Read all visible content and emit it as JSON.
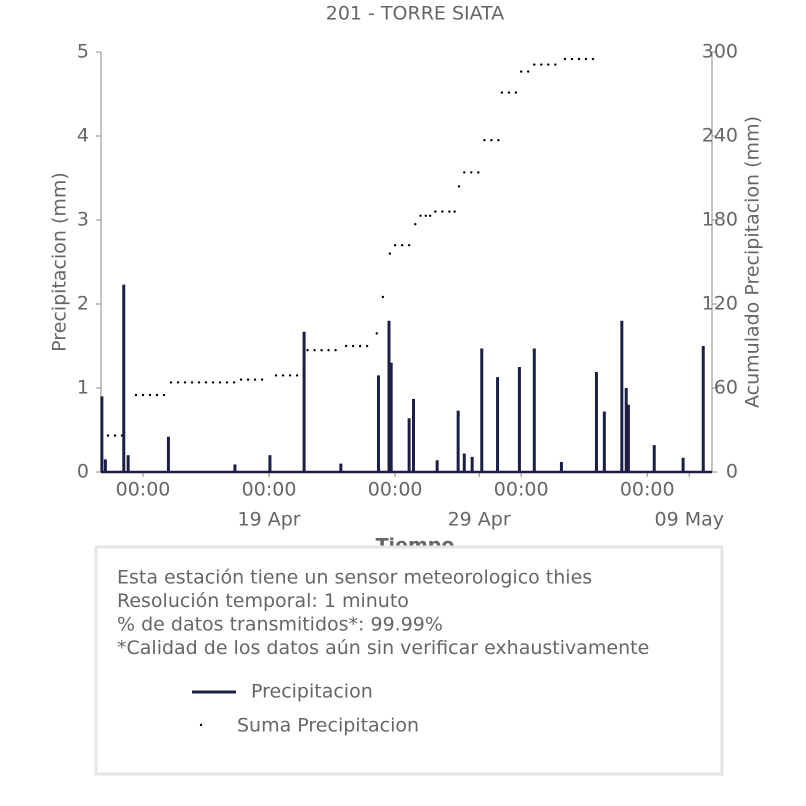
{
  "chart_data": {
    "type": "line",
    "title": "201 - TORRE SIATA",
    "xlabel": "Tiempo",
    "ylabel": "Precipitacion (mm)",
    "y2label": "Acumulado Precipitacion (mm)",
    "xlim": [
      "11 Apr 00:00",
      "10 May 02:00"
    ],
    "xticks": [
      {
        "value": "13 Apr 00:00",
        "label": "00:00"
      },
      {
        "value": "19 Apr 00:00",
        "label": "00:00"
      },
      {
        "value": "25 Apr 00:00",
        "label": "00:00"
      },
      {
        "value": "01 May 00:00",
        "label": "00:00"
      },
      {
        "value": "07 May 00:00",
        "label": "00:00"
      }
    ],
    "xticks_secondary": [
      {
        "value": "19 Apr 00:00",
        "label": "19 Apr"
      },
      {
        "value": "29 Apr 00:00",
        "label": "29 Apr"
      },
      {
        "value": "09 May 00:00",
        "label": "09 May"
      }
    ],
    "ylim": [
      0,
      5
    ],
    "yticks": [
      0,
      1,
      2,
      3,
      4,
      5
    ],
    "y2lim": [
      0,
      300
    ],
    "y2ticks": [
      0,
      60,
      120,
      180,
      240,
      300
    ],
    "annotations": [
      "Esta estación tiene un sensor meteorologico thies",
      "Resolución temporal: 1 minuto",
      "% de datos transmitidos*: 99.99%",
      "*Calidad de los datos aún sin verificar exhaustivamente"
    ],
    "series": [
      {
        "name": "Precipitacion",
        "color": "#1c1f45",
        "x": [
          "11 Apr 01:00",
          "11 Apr 05:00",
          "12 Apr 02:00",
          "12 Apr 07:00",
          "14 Apr 05:00",
          "17 Apr 09:00",
          "19 Apr 01:00",
          "20 Apr 16:00",
          "22 Apr 10:00",
          "24 Apr 05:00",
          "24 Apr 17:00",
          "24 Apr 19:30",
          "25 Apr 16:00",
          "25 Apr 21:00",
          "27 Apr 00:00",
          "28 Apr 00:00",
          "28 Apr 07:00",
          "28 Apr 16:00",
          "29 Apr 03:00",
          "29 Apr 21:00",
          "30 Apr 22:00",
          "01 May 15:00",
          "02 May 22:00",
          "04 May 14:00",
          "04 May 23:00",
          "05 May 19:00",
          "06 May 00:00",
          "06 May 02:30",
          "07 May 08:00",
          "08 May 17:00",
          "09 May 16:00"
        ],
        "values": [
          0.9,
          0.15,
          2.23,
          0.2,
          0.42,
          0.09,
          0.2,
          1.67,
          0.1,
          1.15,
          1.8,
          1.3,
          0.64,
          0.87,
          0.14,
          0.73,
          0.22,
          0.18,
          1.47,
          1.13,
          1.25,
          1.47,
          0.12,
          1.19,
          0.72,
          1.8,
          1.0,
          0.8,
          0.32,
          0.17,
          1.5
        ]
      },
      {
        "name": "Suma Precipitacion",
        "color": "#000000",
        "axis": "y2",
        "x": [
          "11 Apr 08:00",
          "11 Apr 16:00",
          "12 Apr 00:00",
          "12 Apr 16:00",
          "13 Apr 00:00",
          "13 Apr 08:00",
          "13 Apr 16:00",
          "14 Apr 00:00",
          "14 Apr 08:00",
          "14 Apr 16:00",
          "15 Apr 00:00",
          "15 Apr 08:00",
          "15 Apr 16:00",
          "16 Apr 00:00",
          "16 Apr 08:00",
          "16 Apr 16:00",
          "17 Apr 00:00",
          "17 Apr 08:00",
          "17 Apr 16:00",
          "18 Apr 00:00",
          "18 Apr 08:00",
          "18 Apr 16:00",
          "19 Apr 08:00",
          "19 Apr 16:00",
          "20 Apr 00:00",
          "20 Apr 08:00",
          "20 Apr 20:00",
          "21 Apr 04:00",
          "21 Apr 12:00",
          "21 Apr 20:00",
          "22 Apr 04:00",
          "22 Apr 16:00",
          "23 Apr 00:00",
          "23 Apr 08:00",
          "23 Apr 16:00",
          "24 Apr 03:00",
          "24 Apr 10:00",
          "24 Apr 18:00",
          "25 Apr 00:00",
          "25 Apr 08:00",
          "25 Apr 16:00",
          "25 Apr 23:00",
          "26 Apr 05:00",
          "26 Apr 11:00",
          "26 Apr 16:00",
          "26 Apr 22:00",
          "27 Apr 06:00",
          "27 Apr 14:00",
          "27 Apr 20:00",
          "28 Apr 01:00",
          "28 Apr 07:00",
          "28 Apr 15:00",
          "28 Apr 23:00",
          "29 Apr 06:00",
          "29 Apr 14:00",
          "29 Apr 22:00",
          "30 Apr 02:00",
          "30 Apr 10:00",
          "30 Apr 18:00",
          "01 May 00:00",
          "01 May 08:00",
          "01 May 15:00",
          "01 May 23:00",
          "02 May 07:00",
          "02 May 15:00",
          "03 May 02:00",
          "03 May 10:00",
          "03 May 18:00",
          "04 May 02:00",
          "04 May 10:00"
        ],
        "values": [
          26,
          26,
          26,
          55,
          55,
          55,
          55,
          55,
          64,
          64,
          64,
          64,
          64,
          64,
          64,
          64,
          64,
          64,
          66,
          66,
          66,
          66,
          69,
          69,
          69,
          69,
          87,
          87,
          87,
          87,
          87,
          90,
          90,
          90,
          90,
          99,
          125,
          156,
          162,
          162,
          162,
          177,
          183,
          183,
          183,
          186,
          186,
          186,
          186,
          204,
          214,
          214,
          214,
          237,
          237,
          237,
          271,
          271,
          271,
          286,
          286,
          291,
          291,
          291,
          291,
          295,
          295,
          295,
          295,
          295
        ]
      }
    ]
  }
}
